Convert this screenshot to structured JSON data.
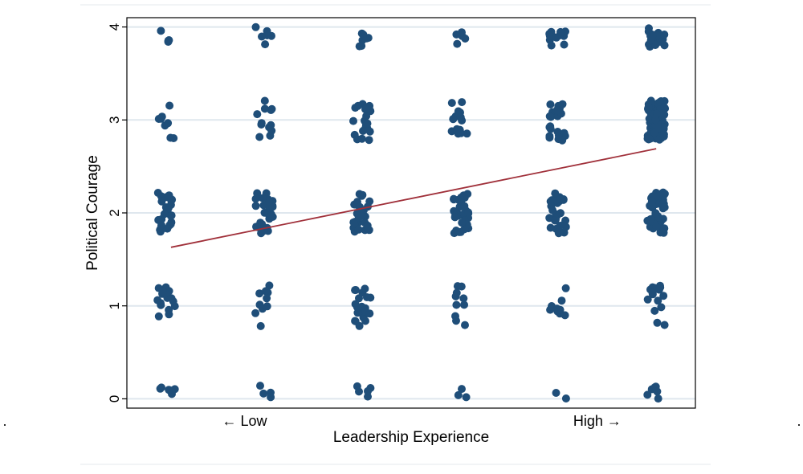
{
  "chart_data": {
    "type": "scatter",
    "title": "",
    "xlabel": "Leadership Experience",
    "ylabel": "Political Courage",
    "xlim": [
      0.6,
      6.4
    ],
    "ylim": [
      -0.1,
      4.1
    ],
    "yticks": [
      0,
      1,
      2,
      3,
      4
    ],
    "ytick_labels": [
      "0",
      "1",
      "2",
      "3",
      "4"
    ],
    "x_annotations": [
      {
        "label": "← Low",
        "x": 1.8
      },
      {
        "label": "High →",
        "x": 5.4
      }
    ],
    "grid": "horizontal",
    "marker_color": "#1f4e79",
    "fit_color": "#a0303a",
    "gridline_color": "#dfe7ee",
    "fit_line": {
      "label": "linear fit",
      "x": [
        1.05,
        6.0
      ],
      "y": [
        1.63,
        2.69
      ]
    },
    "jitter": {
      "x": 0.09,
      "y": 0.22
    },
    "series": [
      {
        "name": "jittered observations",
        "counts": [
          {
            "x": 1,
            "y": 0,
            "n": 6
          },
          {
            "x": 2,
            "y": 0,
            "n": 4
          },
          {
            "x": 3,
            "y": 0,
            "n": 5
          },
          {
            "x": 4,
            "y": 0,
            "n": 3
          },
          {
            "x": 5,
            "y": 0,
            "n": 2
          },
          {
            "x": 6,
            "y": 0,
            "n": 6
          },
          {
            "x": 1,
            "y": 1,
            "n": 16
          },
          {
            "x": 2,
            "y": 1,
            "n": 10
          },
          {
            "x": 3,
            "y": 1,
            "n": 22
          },
          {
            "x": 4,
            "y": 1,
            "n": 10
          },
          {
            "x": 5,
            "y": 1,
            "n": 10
          },
          {
            "x": 6,
            "y": 1,
            "n": 15
          },
          {
            "x": 1,
            "y": 2,
            "n": 28
          },
          {
            "x": 2,
            "y": 2,
            "n": 28
          },
          {
            "x": 3,
            "y": 2,
            "n": 28
          },
          {
            "x": 4,
            "y": 2,
            "n": 34
          },
          {
            "x": 5,
            "y": 2,
            "n": 30
          },
          {
            "x": 6,
            "y": 2,
            "n": 45
          },
          {
            "x": 1,
            "y": 3,
            "n": 8
          },
          {
            "x": 2,
            "y": 3,
            "n": 12
          },
          {
            "x": 3,
            "y": 3,
            "n": 20
          },
          {
            "x": 4,
            "y": 3,
            "n": 16
          },
          {
            "x": 5,
            "y": 3,
            "n": 24
          },
          {
            "x": 6,
            "y": 3,
            "n": 80
          },
          {
            "x": 1,
            "y": 4,
            "n": 4
          },
          {
            "x": 2,
            "y": 4,
            "n": 6
          },
          {
            "x": 3,
            "y": 4,
            "n": 7
          },
          {
            "x": 4,
            "y": 4,
            "n": 5
          },
          {
            "x": 5,
            "y": 4,
            "n": 12
          },
          {
            "x": 6,
            "y": 4,
            "n": 20
          }
        ]
      }
    ]
  },
  "frame": {
    "left_mark": ".",
    "right_mark": "."
  }
}
